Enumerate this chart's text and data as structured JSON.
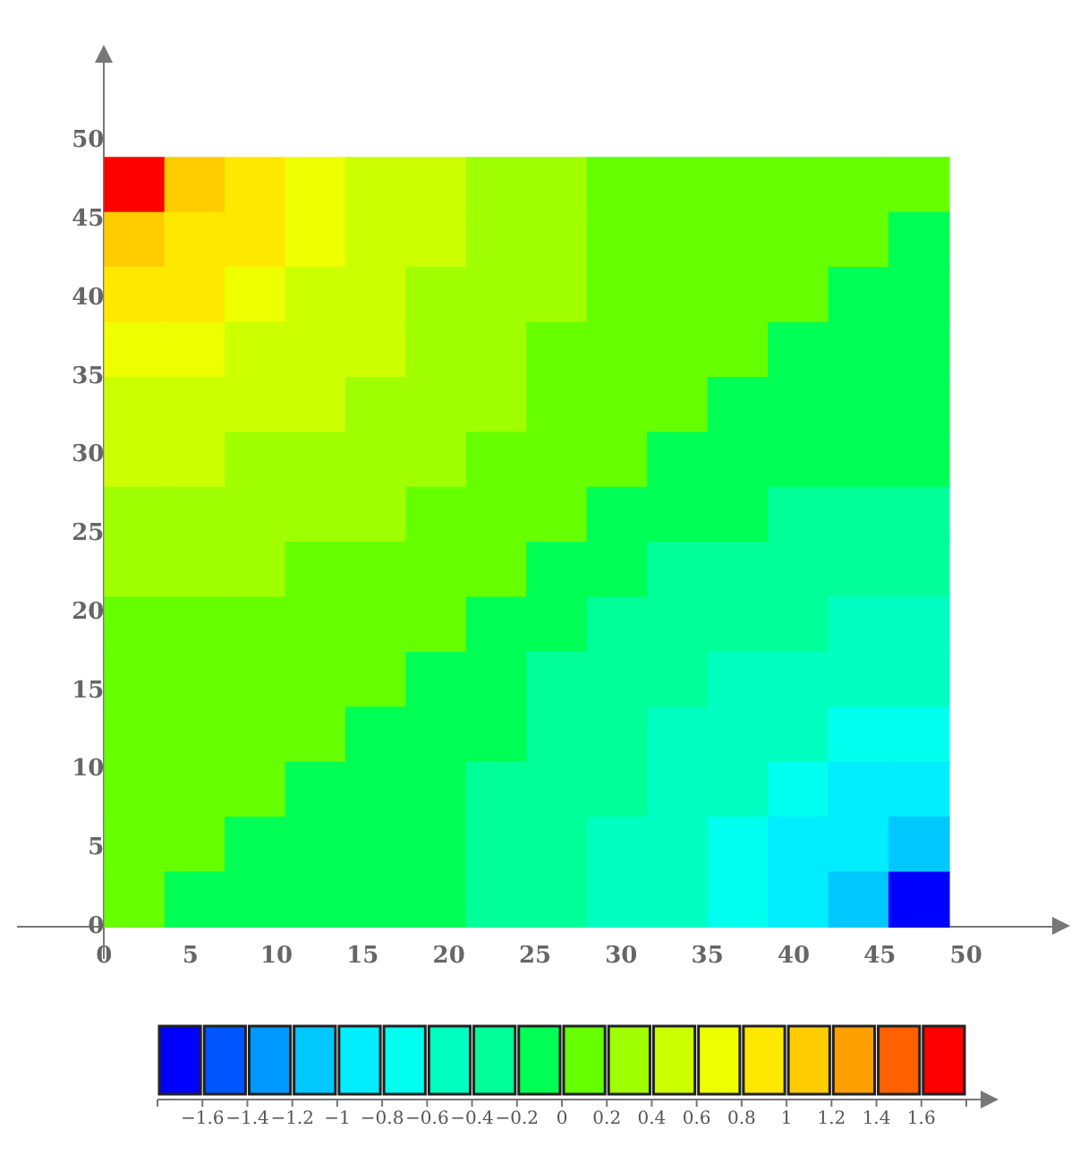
{
  "chart_data": {
    "type": "heatmap",
    "x": [
      1.75,
      5.25,
      8.75,
      12.25,
      15.75,
      19.25,
      22.75,
      26.25,
      29.75,
      33.25,
      36.75,
      40.25,
      43.75,
      47.25
    ],
    "y": [
      47.25,
      43.75,
      40.25,
      36.75,
      33.25,
      29.75,
      26.25,
      22.75,
      19.25,
      15.75,
      12.25,
      8.75,
      5.25,
      1.75
    ],
    "cells": [
      [
        1.7,
        1.1,
        0.9,
        0.7,
        0.5,
        0.5,
        0.3,
        0.3,
        0.1,
        0.1,
        0.1,
        0.1,
        0.1,
        0.1
      ],
      [
        1.1,
        0.9,
        0.9,
        0.7,
        0.5,
        0.5,
        0.3,
        0.3,
        0.1,
        0.1,
        0.1,
        0.1,
        0.1,
        -0.1
      ],
      [
        0.9,
        0.9,
        0.7,
        0.5,
        0.5,
        0.3,
        0.3,
        0.3,
        0.1,
        0.1,
        0.1,
        0.1,
        -0.1,
        -0.1
      ],
      [
        0.7,
        0.7,
        0.5,
        0.5,
        0.5,
        0.3,
        0.3,
        0.1,
        0.1,
        0.1,
        0.1,
        -0.1,
        -0.1,
        -0.1
      ],
      [
        0.5,
        0.5,
        0.5,
        0.5,
        0.3,
        0.3,
        0.3,
        0.1,
        0.1,
        0.1,
        -0.1,
        -0.1,
        -0.1,
        -0.1
      ],
      [
        0.5,
        0.5,
        0.3,
        0.3,
        0.3,
        0.3,
        0.1,
        0.1,
        0.1,
        -0.1,
        -0.1,
        -0.1,
        -0.1,
        -0.1
      ],
      [
        0.3,
        0.3,
        0.3,
        0.3,
        0.3,
        0.1,
        0.1,
        0.1,
        -0.1,
        -0.1,
        -0.1,
        -0.3,
        -0.3,
        -0.3
      ],
      [
        0.3,
        0.3,
        0.3,
        0.1,
        0.1,
        0.1,
        0.1,
        -0.1,
        -0.1,
        -0.3,
        -0.3,
        -0.3,
        -0.3,
        -0.3
      ],
      [
        0.1,
        0.1,
        0.1,
        0.1,
        0.1,
        0.1,
        -0.1,
        -0.1,
        -0.3,
        -0.3,
        -0.3,
        -0.3,
        -0.5,
        -0.5
      ],
      [
        0.1,
        0.1,
        0.1,
        0.1,
        0.1,
        -0.1,
        -0.1,
        -0.3,
        -0.3,
        -0.3,
        -0.5,
        -0.5,
        -0.5,
        -0.5
      ],
      [
        0.1,
        0.1,
        0.1,
        0.1,
        -0.1,
        -0.1,
        -0.1,
        -0.3,
        -0.3,
        -0.5,
        -0.5,
        -0.5,
        -0.7,
        -0.7
      ],
      [
        0.1,
        0.1,
        0.1,
        -0.1,
        -0.1,
        -0.1,
        -0.3,
        -0.3,
        -0.3,
        -0.5,
        -0.5,
        -0.7,
        -0.9,
        -0.9
      ],
      [
        0.1,
        0.1,
        -0.1,
        -0.1,
        -0.1,
        -0.1,
        -0.3,
        -0.3,
        -0.5,
        -0.5,
        -0.7,
        -0.9,
        -0.9,
        -1.1
      ],
      [
        0.1,
        -0.1,
        -0.1,
        -0.1,
        -0.1,
        -0.1,
        -0.3,
        -0.3,
        -0.5,
        -0.5,
        -0.7,
        -0.9,
        -1.1,
        -1.7
      ]
    ],
    "colors": [
      "#0000ff",
      "#0055ff",
      "#0099ff",
      "#00c8ff",
      "#00eeff",
      "#00ffee",
      "#00ffc0",
      "#00ff99",
      "#00ff55",
      "#66ff00",
      "#a0ff00",
      "#ccff00",
      "#eeff00",
      "#ffe800",
      "#ffcc00",
      "#ffa000",
      "#ff6000",
      "#ff0000"
    ],
    "xlim": [
      -5,
      55
    ],
    "ylim": [
      -2,
      55
    ],
    "xticks": [
      0,
      5,
      10,
      15,
      20,
      25,
      30,
      35,
      40,
      45,
      50
    ],
    "yticks": [
      0,
      5,
      10,
      15,
      20,
      25,
      30,
      35,
      40,
      45,
      50
    ],
    "clim": [
      -1.8,
      1.8
    ],
    "cticks": [
      {
        "value": -1.8,
        "label": null
      },
      -1.6,
      -1.4,
      -1.2,
      -1,
      -0.8,
      -0.6,
      -0.4,
      -0.2,
      0,
      0.2,
      0.4,
      0.6,
      0.8,
      1,
      1.2,
      1.4,
      1.6,
      {
        "value": 1.8,
        "label": null
      }
    ],
    "grid": false
  }
}
